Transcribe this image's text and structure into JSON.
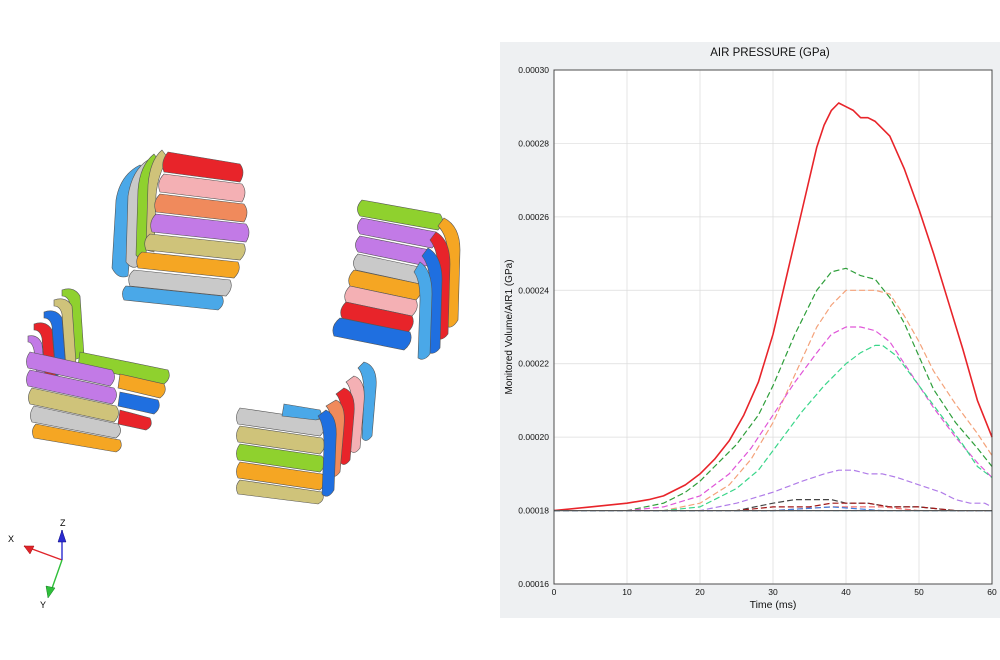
{
  "viewport": {
    "triad_labels": {
      "x": "X",
      "y": "Y",
      "z": "Z"
    },
    "triad_colors": {
      "x": "#e0242a",
      "y": "#2fbf3a",
      "z": "#2a2ad0"
    },
    "stack_colors": [
      "#e8242a",
      "#f4b0b4",
      "#f08a5c",
      "#c27ae6",
      "#cfc37a",
      "#f5a623",
      "#4aa8e8",
      "#c9c9c9",
      "#8fd12e",
      "#1f6fe0"
    ]
  },
  "chart_data": {
    "type": "line",
    "title": "AIR PRESSURE (GPa)",
    "xlabel": "Time (ms)",
    "ylabel": "Monitored Volume/AIR1 (GPa)",
    "xlim": [
      0,
      60
    ],
    "ylim": [
      0.00016,
      0.0003
    ],
    "xticks": [
      "0",
      "10",
      "20",
      "30",
      "40",
      "50",
      "60"
    ],
    "yticks": [
      "0.00016",
      "0.00018",
      "0.00020",
      "0.00022",
      "0.00024",
      "0.00026",
      "0.00028",
      "0.00030"
    ],
    "grid": true,
    "legend": "none",
    "series": [
      {
        "color": "#e8242a",
        "dash": "solid",
        "x": [
          0,
          5,
          10,
          13,
          15,
          18,
          20,
          22,
          24,
          26,
          28,
          30,
          32,
          34,
          36,
          37,
          38,
          39,
          40,
          41,
          42,
          43,
          44,
          46,
          48,
          50,
          52,
          54,
          56,
          58,
          60
        ],
        "y": [
          0.00018,
          0.000181,
          0.000182,
          0.000183,
          0.000184,
          0.000187,
          0.00019,
          0.000194,
          0.000199,
          0.000206,
          0.000215,
          0.000228,
          0.000245,
          0.000262,
          0.000279,
          0.000285,
          0.000289,
          0.000291,
          0.00029,
          0.000289,
          0.000287,
          0.000287,
          0.000286,
          0.000282,
          0.000273,
          0.000262,
          0.00025,
          0.000237,
          0.000224,
          0.00021,
          0.0002
        ]
      },
      {
        "color": "#2e9e3a",
        "dash": "dashed",
        "x": [
          0,
          10,
          15,
          18,
          20,
          22,
          25,
          28,
          30,
          33,
          36,
          38,
          40,
          42,
          44,
          46,
          48,
          50,
          52,
          55,
          58,
          60
        ],
        "y": [
          0.00018,
          0.00018,
          0.000182,
          0.000185,
          0.000188,
          0.000192,
          0.000198,
          0.000206,
          0.000214,
          0.000228,
          0.00024,
          0.000245,
          0.000246,
          0.000244,
          0.000243,
          0.000238,
          0.000231,
          0.000222,
          0.000213,
          0.000204,
          0.000197,
          0.000192
        ]
      },
      {
        "color": "#f4a27a",
        "dash": "dashed",
        "x": [
          0,
          10,
          15,
          20,
          24,
          27,
          30,
          33,
          36,
          38,
          40,
          42,
          44,
          46,
          48,
          50,
          52,
          55,
          58,
          60
        ],
        "y": [
          0.00018,
          0.00018,
          0.00018,
          0.000182,
          0.000187,
          0.000194,
          0.000204,
          0.000217,
          0.00023,
          0.000236,
          0.00024,
          0.00024,
          0.00024,
          0.000239,
          0.000233,
          0.000226,
          0.000218,
          0.000209,
          0.000201,
          0.000195
        ]
      },
      {
        "color": "#e056d8",
        "dash": "dashed",
        "x": [
          0,
          10,
          15,
          20,
          24,
          27,
          30,
          33,
          36,
          38,
          40,
          42,
          44,
          46,
          48,
          50,
          52,
          55,
          58,
          60
        ],
        "y": [
          0.00018,
          0.00018,
          0.000181,
          0.000184,
          0.00019,
          0.000197,
          0.000206,
          0.000215,
          0.000223,
          0.000228,
          0.00023,
          0.00023,
          0.000229,
          0.000226,
          0.00022,
          0.000214,
          0.000208,
          0.0002,
          0.000193,
          0.000189
        ]
      },
      {
        "color": "#3ad68a",
        "dash": "dashed",
        "x": [
          0,
          10,
          15,
          20,
          25,
          28,
          31,
          34,
          37,
          40,
          42,
          44,
          45,
          47,
          50,
          53,
          56,
          58,
          60
        ],
        "y": [
          0.00018,
          0.00018,
          0.00018,
          0.000181,
          0.000186,
          0.000191,
          0.000199,
          0.000207,
          0.000214,
          0.00022,
          0.000223,
          0.000225,
          0.000225,
          0.000222,
          0.000214,
          0.000206,
          0.000198,
          0.000192,
          0.000189
        ]
      },
      {
        "color": "#b07ce8",
        "dash": "dashed",
        "x": [
          0,
          10,
          20,
          25,
          30,
          34,
          37,
          39,
          41,
          43,
          45,
          47,
          50,
          53,
          55,
          57,
          59,
          60
        ],
        "y": [
          0.00018,
          0.00018,
          0.00018,
          0.000182,
          0.000185,
          0.000188,
          0.00019,
          0.000191,
          0.000191,
          0.00019,
          0.00019,
          0.000189,
          0.000187,
          0.000185,
          0.000183,
          0.000182,
          0.000182,
          0.000181
        ]
      },
      {
        "color": "#444444",
        "dash": "dashed",
        "x": [
          0,
          15,
          25,
          30,
          33,
          36,
          38,
          40,
          43,
          46,
          50,
          55,
          60
        ],
        "y": [
          0.00018,
          0.00018,
          0.00018,
          0.000182,
          0.000183,
          0.000183,
          0.000183,
          0.000182,
          0.000182,
          0.000181,
          0.000181,
          0.00018,
          0.00018
        ]
      },
      {
        "color": "#a01818",
        "dash": "dashed",
        "x": [
          0,
          15,
          25,
          30,
          35,
          38,
          40,
          43,
          46,
          50,
          55,
          60
        ],
        "y": [
          0.00018,
          0.00018,
          0.00018,
          0.000181,
          0.000181,
          0.000182,
          0.000182,
          0.000182,
          0.000181,
          0.000181,
          0.00018,
          0.00018
        ]
      },
      {
        "color": "#f07070",
        "dash": "dashed",
        "x": [
          0,
          20,
          30,
          38,
          45,
          50,
          60
        ],
        "y": [
          0.00018,
          0.00018,
          0.00018,
          0.000181,
          0.000181,
          0.00018,
          0.00018
        ]
      },
      {
        "color": "#4080e0",
        "dash": "dashed",
        "x": [
          0,
          20,
          30,
          38,
          45,
          50,
          60
        ],
        "y": [
          0.00018,
          0.00018,
          0.00018,
          0.000181,
          0.00018,
          0.00018,
          0.00018
        ]
      },
      {
        "color": "#6cc0d8",
        "dash": "dashed",
        "x": [
          0,
          30,
          60
        ],
        "y": [
          0.00018,
          0.00018,
          0.00018
        ]
      },
      {
        "color": "#555555",
        "dash": "solid",
        "x": [
          0,
          30,
          60
        ],
        "y": [
          0.00018,
          0.00018,
          0.00018
        ]
      }
    ]
  }
}
